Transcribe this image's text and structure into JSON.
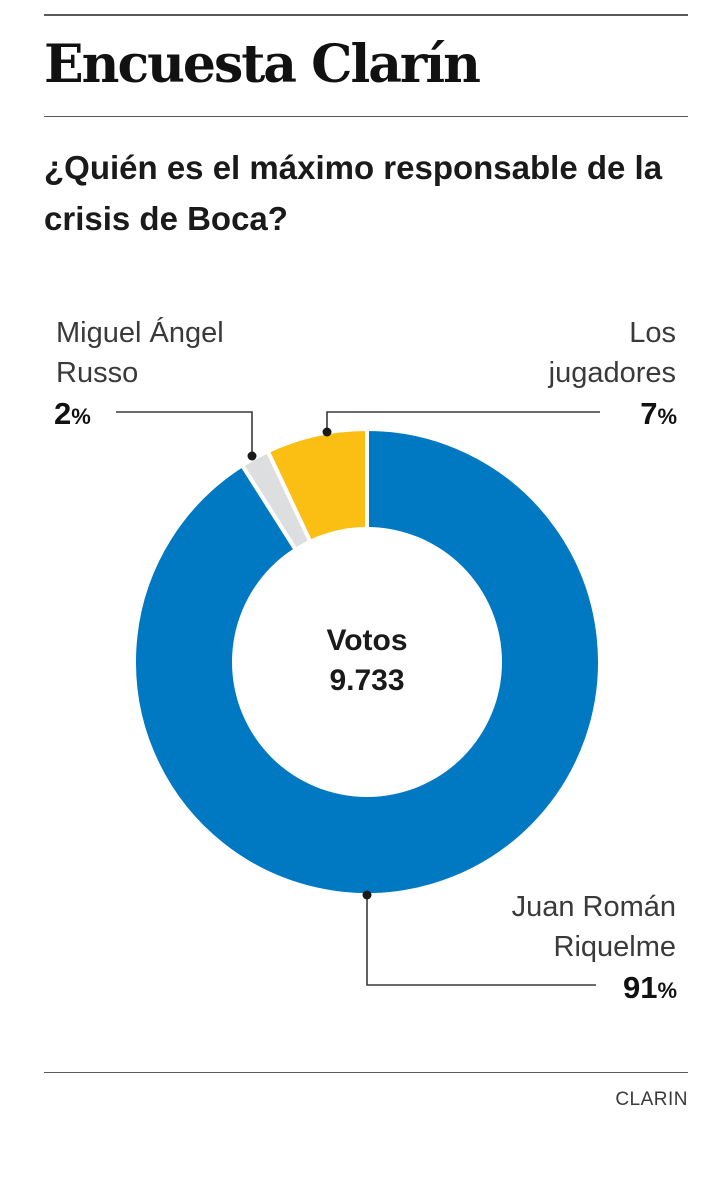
{
  "header": {
    "title": "Encuesta Clarín",
    "question": "¿Quién es el máximo responsable de la crisis de Boca?"
  },
  "chart_data": {
    "type": "pie",
    "donut": true,
    "title": "¿Quién es el máximo responsable de la crisis de Boca?",
    "center_label": "Votos",
    "center_value": "9.733",
    "categories": [
      "Juan Román Riquelme",
      "Miguel Ángel Russo",
      "Los jugadores"
    ],
    "values": [
      91,
      2,
      7
    ],
    "unit": "%",
    "colors": [
      "#0078c2",
      "#dcdee0",
      "#fbbf14"
    ],
    "labels": [
      {
        "lines": [
          "Juan Román",
          "Riquelme"
        ],
        "pct": "91",
        "sign": "%"
      },
      {
        "lines": [
          "Miguel Ángel",
          "Russo"
        ],
        "pct": "2",
        "sign": "%"
      },
      {
        "lines": [
          "Los",
          "jugadores"
        ],
        "pct": "7",
        "sign": "%"
      }
    ]
  },
  "footer": {
    "source": "CLARIN"
  }
}
